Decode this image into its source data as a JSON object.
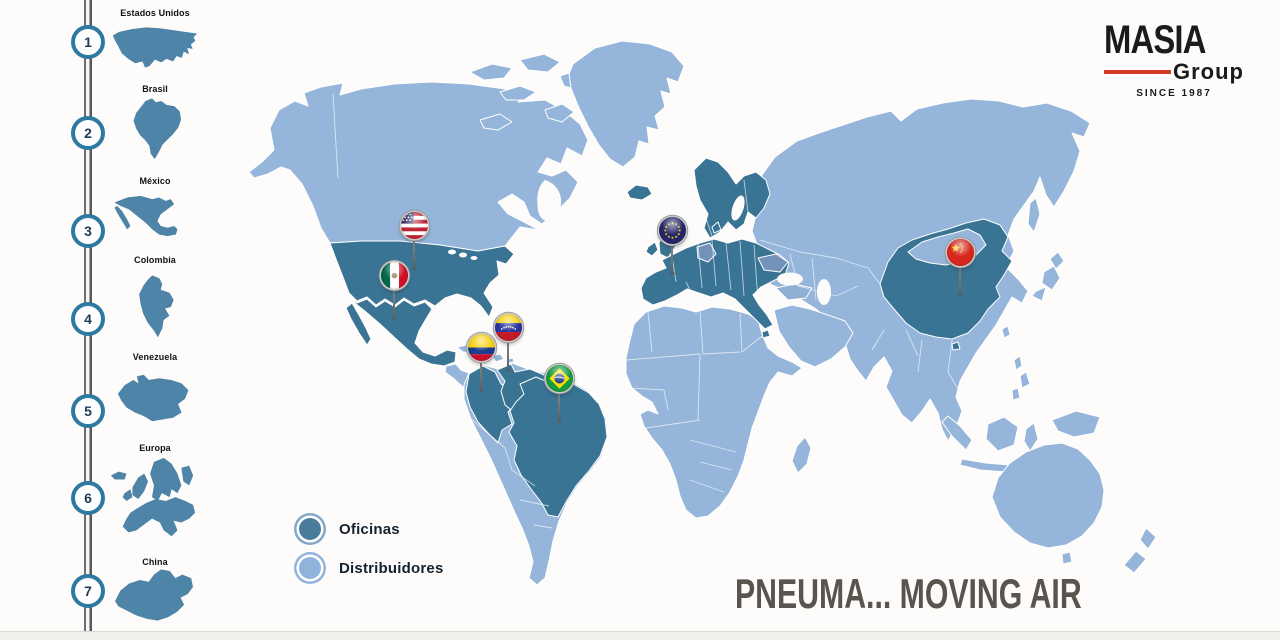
{
  "logo": {
    "brand": "MASIA",
    "group": "Group",
    "since": "SINCE 1987"
  },
  "tagline": "PNEUMA... MOVING AIR",
  "legend": {
    "items": [
      {
        "id": "offices",
        "label": "Oficinas"
      },
      {
        "id": "distributors",
        "label": "Distribuidores"
      }
    ]
  },
  "sidebar": {
    "items": [
      {
        "num": "1",
        "label": "Estados Unidos",
        "shape": "usa"
      },
      {
        "num": "2",
        "label": "Brasil",
        "shape": "brasil"
      },
      {
        "num": "3",
        "label": "México",
        "shape": "mexico"
      },
      {
        "num": "4",
        "label": "Colombia",
        "shape": "colombia"
      },
      {
        "num": "5",
        "label": "Venezuela",
        "shape": "venezuela"
      },
      {
        "num": "6",
        "label": "Europa",
        "shape": "europa"
      },
      {
        "num": "7",
        "label": "China",
        "shape": "china"
      }
    ]
  },
  "map": {
    "pins": [
      {
        "country": "Estados Unidos",
        "flag": "us"
      },
      {
        "country": "México",
        "flag": "mx"
      },
      {
        "country": "Colombia",
        "flag": "co"
      },
      {
        "country": "Venezuela",
        "flag": "ve"
      },
      {
        "country": "Brasil",
        "flag": "br"
      },
      {
        "country": "Europa",
        "flag": "eu"
      },
      {
        "country": "China",
        "flag": "cn"
      }
    ]
  },
  "colors": {
    "office_teal": "#3a7495",
    "distributor_blue": "#95b5da",
    "sidebar_silhouette": "#4d84a7",
    "accent_red": "#d63a2a",
    "tagline_gray": "#57554d"
  }
}
